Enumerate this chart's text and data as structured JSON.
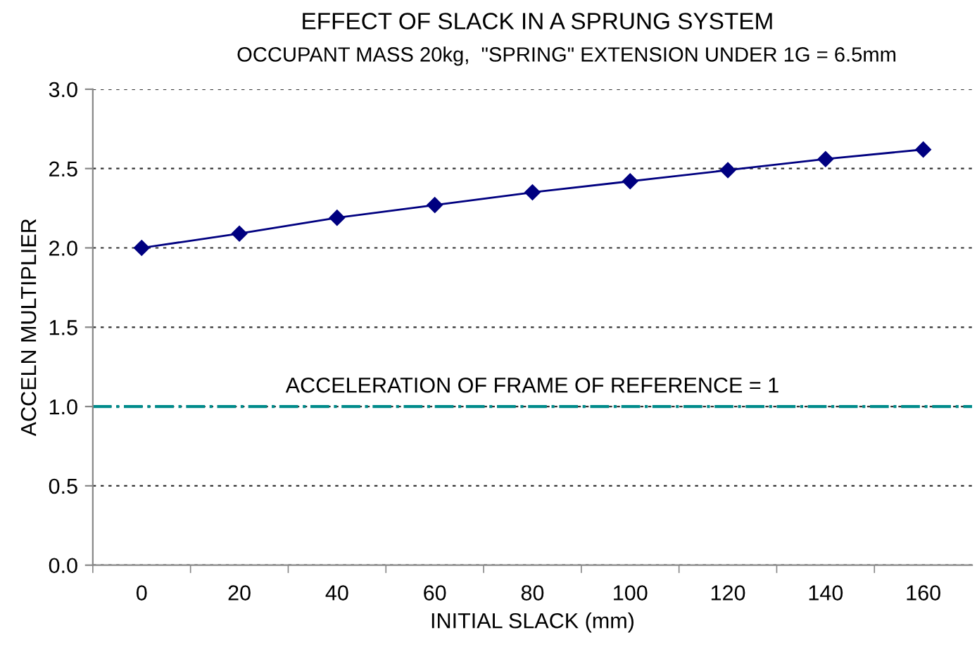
{
  "chart_data": {
    "type": "line",
    "title": "EFFECT OF SLACK IN A SPRUNG SYSTEM",
    "subtitle": "OCCUPANT MASS 20kg,  \"SPRING\" EXTENSION UNDER 1G = 6.5mm",
    "xlabel": "INITIAL SLACK (mm)",
    "ylabel": "ACCELN MULTIPLIER",
    "categories": [
      "0",
      "20",
      "40",
      "60",
      "80",
      "100",
      "120",
      "140",
      "160"
    ],
    "series": [
      {
        "color": "#000080",
        "values": [
          2.0,
          2.09,
          2.19,
          2.27,
          2.35,
          2.42,
          2.49,
          2.56,
          2.62
        ]
      }
    ],
    "ylim": [
      0,
      3
    ],
    "yticks": [
      {
        "value": 0,
        "label": "0.0"
      },
      {
        "value": 0.5,
        "label": "0.5"
      },
      {
        "value": 1,
        "label": "1.0"
      },
      {
        "value": 1.5,
        "label": "1.5"
      },
      {
        "value": 2,
        "label": "2.0"
      },
      {
        "value": 2.5,
        "label": "2.5"
      },
      {
        "value": 3,
        "label": "3.0"
      }
    ],
    "ref_lines": [
      {
        "axis": "y",
        "value": 1,
        "label": "ACCELERATION OF FRAME OF REFERENCE = 1",
        "color": "#008b8b",
        "line_style": "dashdot"
      }
    ],
    "grid": "y",
    "marker": "diamond",
    "line_style": "solid"
  }
}
